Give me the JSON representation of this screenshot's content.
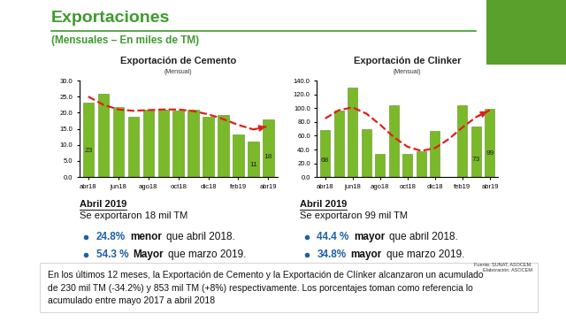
{
  "header": {
    "title": "Exportaciones",
    "subtitle": "(Mensuales – En miles de TM)"
  },
  "chart_data": [
    {
      "type": "bar",
      "title": "Exportación de Cemento",
      "subtitle": "(Mensual)",
      "categories": [
        "abr18",
        null,
        "jun18",
        null,
        "ago18",
        null,
        "oct18",
        null,
        "dic18",
        null,
        "feb19",
        null,
        "abr19"
      ],
      "series": [
        {
          "type": "bar",
          "color": "#7ab929",
          "values": [
            23,
            25.8,
            21.8,
            18.8,
            21,
            20.8,
            20.7,
            21,
            18.7,
            19.2,
            13.2,
            11,
            18
          ],
          "value_labels": [
            "23",
            null,
            null,
            null,
            null,
            null,
            null,
            null,
            null,
            null,
            null,
            "11",
            "18"
          ]
        },
        {
          "type": "line",
          "color": "#e0201b",
          "line_style": "dashed",
          "marker": "arrow",
          "values": [
            25,
            22.5,
            21,
            20.6,
            20.8,
            21,
            21,
            20.5,
            19.5,
            18,
            16.2,
            14.8,
            15.8
          ]
        }
      ],
      "ylim": [
        0,
        30
      ],
      "yticks": [
        {
          "value": 0,
          "label": "0.0"
        },
        {
          "value": 5,
          "label": "5.0"
        },
        {
          "value": 10,
          "label": "10.0"
        },
        {
          "value": 15,
          "label": "15.0"
        },
        {
          "value": 20,
          "label": "20.0"
        },
        {
          "value": 25,
          "label": "25.0"
        },
        {
          "value": 30,
          "label": "30.0"
        }
      ],
      "data_labels": true,
      "grid": false
    },
    {
      "type": "bar",
      "title": "Exportación de Clinker",
      "subtitle": "(Mensual)",
      "categories": [
        "abr18",
        null,
        "jun18",
        null,
        "ago18",
        null,
        "oct18",
        null,
        "dic18",
        null,
        "feb19",
        null,
        "abr19"
      ],
      "series": [
        {
          "type": "bar",
          "color": "#7ab929",
          "values": [
            68,
            97,
            130,
            70,
            34,
            104,
            34,
            37,
            67,
            null,
            104,
            73,
            99
          ],
          "value_labels": [
            "68",
            null,
            null,
            null,
            null,
            null,
            null,
            null,
            null,
            null,
            null,
            "73",
            "99"
          ]
        },
        {
          "type": "line",
          "color": "#e0201b",
          "line_style": "dashed",
          "marker": "arrow",
          "values": [
            85,
            97,
            101,
            92,
            76,
            58,
            44,
            38,
            42,
            55,
            72,
            87,
            97
          ]
        }
      ],
      "ylim": [
        0,
        140
      ],
      "yticks": [
        {
          "value": 0,
          "label": "0.0"
        },
        {
          "value": 20,
          "label": "20.0"
        },
        {
          "value": 40,
          "label": "40.0"
        },
        {
          "value": 60,
          "label": "60.0"
        },
        {
          "value": 80,
          "label": "80.0"
        },
        {
          "value": 100,
          "label": "100.0"
        },
        {
          "value": 120,
          "label": "120.0"
        },
        {
          "value": 140,
          "label": "140.0"
        }
      ],
      "data_labels": true,
      "grid": false
    }
  ],
  "summaries": [
    {
      "period": "Abril 2019",
      "headline": "Se exportaron 18 mil TM",
      "bullets": [
        {
          "pct": "24.8%",
          "word": "menor",
          "rest": "que abril 2018."
        },
        {
          "pct": "54.3 %",
          "word": "Mayor",
          "rest": "que marzo 2019."
        }
      ]
    },
    {
      "period": "Abril 2019",
      "headline": "Se exportaron 99 mil TM",
      "bullets": [
        {
          "pct": "44.4 %",
          "word": "mayor",
          "rest": "que abril 2018."
        },
        {
          "pct": "34.8%",
          "word": "mayor",
          "rest": "que marzo 2019."
        }
      ]
    }
  ],
  "note": {
    "lines": [
      "En los últimos 12 meses, la Exportación de Cemento y la Exportación de Clínker alcanzaron un acumulado",
      "de 230 mil TM (-34.2%) y 853 mil TM (+8%) respectivamente. Los porcentajes toman como referencia lo",
      "acumulado entre mayo 2017 a abril 2018"
    ]
  },
  "source": [
    "Fuente: SUNAT, ASOCEM.",
    "Elaboración: ASOCEM"
  ]
}
